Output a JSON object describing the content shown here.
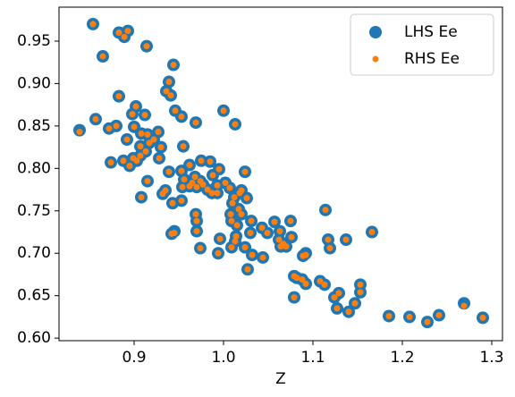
{
  "chart_data": {
    "type": "scatter",
    "xlabel": "Z",
    "x": [
      0.854,
      0.883,
      0.893,
      0.889,
      0.914,
      0.865,
      0.944,
      0.939,
      0.936,
      0.941,
      0.883,
      0.902,
      0.946,
      1.0,
      0.898,
      0.912,
      0.953,
      0.857,
      0.969,
      1.013,
      0.88,
      0.839,
      0.872,
      0.9,
      0.908,
      0.927,
      0.915,
      0.892,
      0.922,
      0.917,
      0.907,
      0.93,
      0.955,
      0.913,
      0.899,
      0.907,
      0.928,
      0.903,
      0.874,
      0.888,
      0.895,
      0.975,
      0.985,
      0.962,
      0.953,
      0.939,
      0.995,
      1.024,
      0.988,
      0.968,
      0.956,
      0.974,
      0.965,
      0.915,
      1.002,
      0.962,
      0.977,
      0.97,
      0.954,
      0.982,
      0.993,
      1.007,
      1.02,
      0.935,
      0.987,
      0.932,
      1.018,
      0.993,
      0.908,
      1.012,
      1.026,
      0.953,
      0.943,
      1.01,
      1.017,
      0.969,
      1.114,
      1.008,
      1.02,
      0.97,
      1.031,
      1.009,
      1.075,
      1.057,
      1.015,
      0.97,
      1.043,
      1.049,
      1.063,
      0.945,
      1.03,
      1.166,
      1.014,
      0.942,
      1.013,
      0.996,
      1.076,
      1.062,
      1.117,
      1.137,
      1.067,
      1.064,
      1.009,
      0.974,
      1.024,
      1.119,
      1.07,
      0.994,
      1.032,
      1.092,
      1.089,
      1.044,
      1.027,
      1.079,
      1.082,
      1.088,
      1.108,
      1.113,
      1.092,
      1.153,
      1.079,
      1.129,
      1.153,
      1.124,
      1.147,
      1.127,
      1.14,
      1.185,
      1.208,
      1.241,
      1.228,
      1.269,
      1.29
    ],
    "series": [
      {
        "name": "LHS Ee",
        "color": "#1f77b4",
        "values": [
          0.97,
          0.96,
          0.962,
          0.955,
          0.944,
          0.932,
          0.922,
          0.902,
          0.891,
          0.886,
          0.885,
          0.873,
          0.868,
          0.868,
          0.864,
          0.863,
          0.861,
          0.858,
          0.854,
          0.852,
          0.85,
          0.845,
          0.847,
          0.849,
          0.841,
          0.843,
          0.84,
          0.834,
          0.834,
          0.83,
          0.826,
          0.825,
          0.826,
          0.82,
          0.812,
          0.815,
          0.812,
          0.809,
          0.807,
          0.809,
          0.803,
          0.809,
          0.808,
          0.804,
          0.797,
          0.796,
          0.799,
          0.796,
          0.792,
          0.79,
          0.787,
          0.785,
          0.783,
          0.785,
          0.783,
          0.779,
          0.781,
          0.778,
          0.778,
          0.775,
          0.78,
          0.777,
          0.774,
          0.774,
          0.771,
          0.77,
          0.771,
          0.771,
          0.766,
          0.766,
          0.765,
          0.762,
          0.759,
          0.759,
          0.752,
          0.746,
          0.751,
          0.746,
          0.746,
          0.738,
          0.738,
          0.738,
          0.738,
          0.737,
          0.733,
          0.726,
          0.73,
          0.724,
          0.726,
          0.726,
          0.724,
          0.725,
          0.72,
          0.723,
          0.714,
          0.717,
          0.719,
          0.716,
          0.716,
          0.716,
          0.711,
          0.708,
          0.707,
          0.706,
          0.707,
          0.706,
          0.708,
          0.7,
          0.698,
          0.7,
          0.697,
          0.695,
          0.681,
          0.673,
          0.671,
          0.669,
          0.667,
          0.663,
          0.664,
          0.663,
          0.648,
          0.653,
          0.654,
          0.648,
          0.641,
          0.635,
          0.631,
          0.626,
          0.625,
          0.627,
          0.619,
          0.641,
          0.624
        ]
      },
      {
        "name": "RHS Ee",
        "color": "#ff7f0e",
        "values": [
          0.97,
          0.96,
          0.962,
          0.955,
          0.944,
          0.932,
          0.922,
          0.902,
          0.891,
          0.886,
          0.885,
          0.873,
          0.868,
          0.868,
          0.864,
          0.863,
          0.861,
          0.858,
          0.854,
          0.852,
          0.85,
          0.843,
          0.847,
          0.849,
          0.841,
          0.843,
          0.84,
          0.834,
          0.834,
          0.83,
          0.826,
          0.825,
          0.826,
          0.82,
          0.812,
          0.815,
          0.812,
          0.809,
          0.807,
          0.809,
          0.803,
          0.809,
          0.808,
          0.804,
          0.797,
          0.796,
          0.799,
          0.796,
          0.792,
          0.79,
          0.787,
          0.785,
          0.783,
          0.785,
          0.783,
          0.779,
          0.781,
          0.778,
          0.778,
          0.775,
          0.78,
          0.777,
          0.774,
          0.774,
          0.771,
          0.77,
          0.771,
          0.771,
          0.766,
          0.766,
          0.765,
          0.762,
          0.759,
          0.759,
          0.752,
          0.746,
          0.751,
          0.746,
          0.746,
          0.738,
          0.738,
          0.738,
          0.738,
          0.737,
          0.733,
          0.726,
          0.73,
          0.724,
          0.726,
          0.724,
          0.724,
          0.725,
          0.72,
          0.723,
          0.714,
          0.717,
          0.719,
          0.716,
          0.716,
          0.716,
          0.711,
          0.708,
          0.707,
          0.706,
          0.707,
          0.706,
          0.708,
          0.7,
          0.698,
          0.698,
          0.697,
          0.695,
          0.681,
          0.673,
          0.671,
          0.669,
          0.667,
          0.663,
          0.664,
          0.663,
          0.648,
          0.653,
          0.654,
          0.648,
          0.641,
          0.635,
          0.631,
          0.626,
          0.625,
          0.627,
          0.619,
          0.638,
          0.624
        ]
      }
    ],
    "xlim": [
      0.816,
      1.312
    ],
    "ylim": [
      0.597,
      0.99
    ],
    "xticks": [
      0.9,
      {
        "value": 1.0,
        "label": "1.0"
      },
      1.1,
      1.2,
      1.3
    ],
    "yticks": [
      {
        "value": 0.6,
        "label": "0.60"
      },
      0.65,
      {
        "value": 0.7,
        "label": "0.70"
      },
      0.75,
      {
        "value": 0.8,
        "label": "0.80"
      },
      0.85,
      {
        "value": 0.9,
        "label": "0.90"
      },
      0.95
    ],
    "legend": "upper right"
  }
}
